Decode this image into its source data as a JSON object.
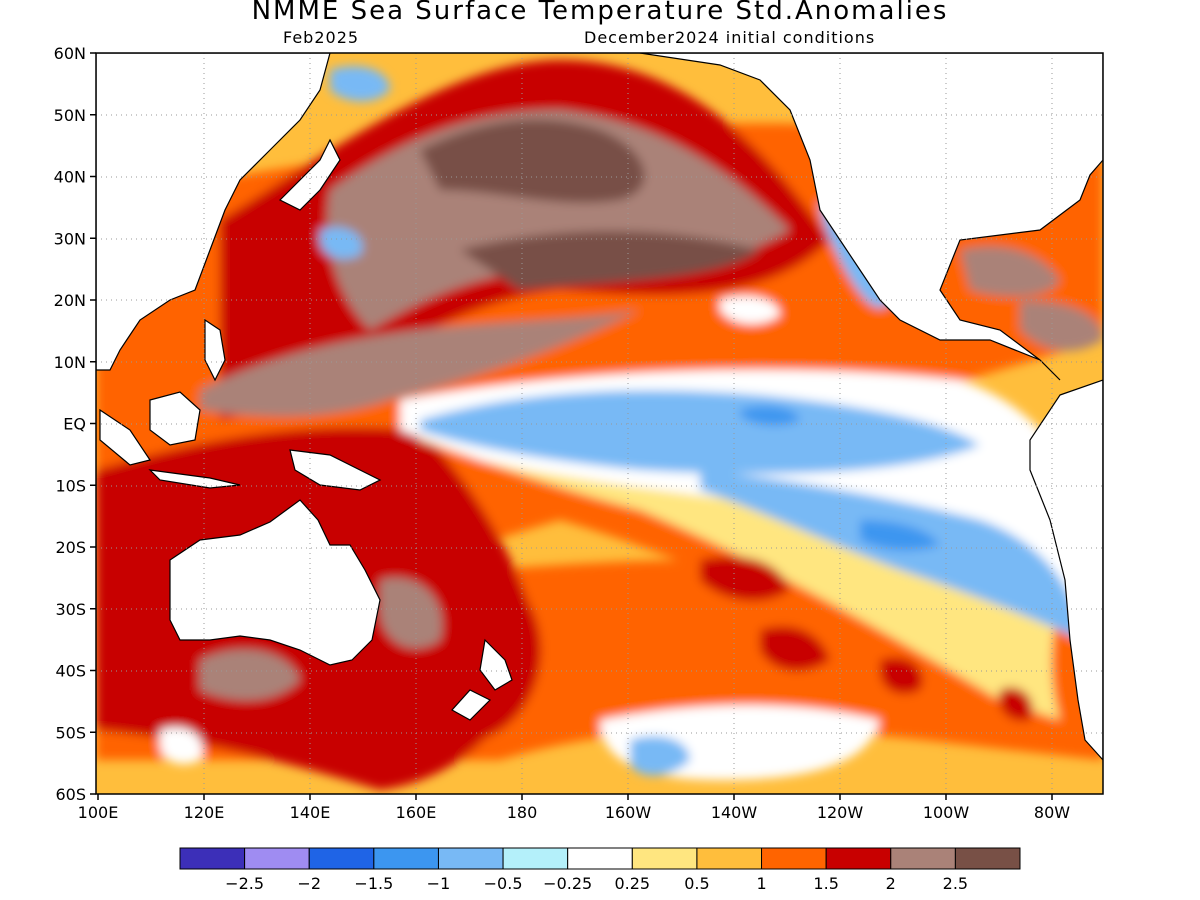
{
  "title": "NMME Sea Surface Temperature Std.Anomalies",
  "subtitle_left": "Feb2025",
  "subtitle_right": "December2024 initial conditions",
  "lat_labels": [
    "60N",
    "50N",
    "40N",
    "30N",
    "20N",
    "10N",
    "EQ",
    "10S",
    "20S",
    "30S",
    "40S",
    "50S",
    "60S"
  ],
  "lon_labels": [
    "100E",
    "120E",
    "140E",
    "160E",
    "180",
    "160W",
    "140W",
    "120W",
    "100W",
    "80W"
  ],
  "colorbar": {
    "colors": [
      "#3c2fb8",
      "#9f8cf2",
      "#1f64e6",
      "#3c96f0",
      "#78b9f5",
      "#b4f0fa",
      "#ffffff",
      "#ffe680",
      "#ffbe3c",
      "#ff6400",
      "#c80000",
      "#aa8278",
      "#785046"
    ],
    "labels": [
      "−2.5",
      "−2",
      "−1.5",
      "−1",
      "−0.5",
      "−0.25",
      "0.25",
      "0.5",
      "1",
      "1.5",
      "2",
      "2.5"
    ]
  },
  "colors": {
    "land": "#ffffff",
    "coast": "#000000",
    "grid": "#999999"
  }
}
